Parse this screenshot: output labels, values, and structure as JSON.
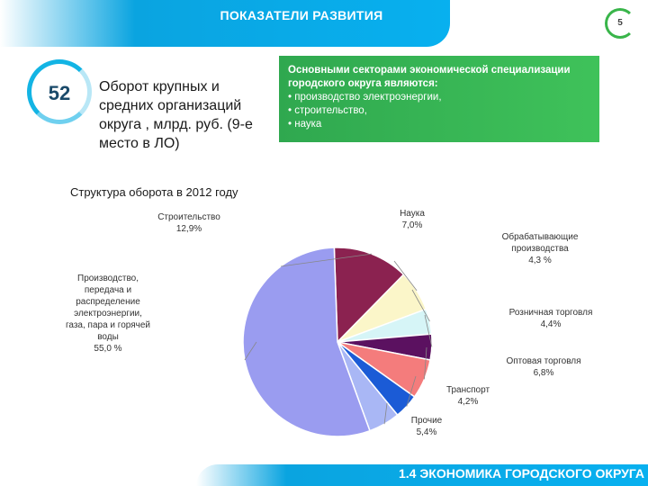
{
  "header": {
    "title": "ПОКАЗАТЕЛИ РАЗВИТИЯ",
    "page_number": "5"
  },
  "kpi": {
    "value": "52",
    "description": "Оборот крупных и средних организаций округа , млрд. руб. (9-е место в ЛО)"
  },
  "specialization": {
    "heading": "Основными секторами экономической специализации городского округа являются:",
    "items": [
      "• производство электроэнергии,",
      "• строительство,",
      "• наука"
    ]
  },
  "footer": {
    "title": "1.4 ЭКОНОМИКА ГОРОДСКОГО ОКРУГА"
  },
  "colors": {
    "header_blue": "#08b0ef",
    "green": "#39b54a"
  },
  "chart_data": {
    "type": "pie",
    "title": "Структура оборота в 2012 году",
    "slices": [
      {
        "label_lines": [
          "Строительство"
        ],
        "value_text": "12,9%",
        "value": 12.9,
        "color": "#8b2250"
      },
      {
        "label_lines": [
          "Наука"
        ],
        "value_text": "7,0%",
        "value": 7.0,
        "color": "#fbf6c9"
      },
      {
        "label_lines": [
          "Обрабатывающие",
          "производства"
        ],
        "value_text": "4,3 %",
        "value": 4.3,
        "color": "#d6f5f7"
      },
      {
        "label_lines": [
          "Розничная торговля"
        ],
        "value_text": "4,4%",
        "value": 4.4,
        "color": "#5b1160"
      },
      {
        "label_lines": [
          "Оптовая торговля"
        ],
        "value_text": "6,8%",
        "value": 6.8,
        "color": "#f47c7c"
      },
      {
        "label_lines": [
          "Транспорт"
        ],
        "value_text": "4,2%",
        "value": 4.2,
        "color": "#1b5bd6"
      },
      {
        "label_lines": [
          "Прочие"
        ],
        "value_text": "5,4%",
        "value": 5.4,
        "color": "#a9b7f5"
      },
      {
        "label_lines": [
          "Производство,",
          "передача и",
          "распределение",
          "электроэнергии,",
          "газа, пара и горячей",
          "воды"
        ],
        "value_text": "55,0 %",
        "value": 55.0,
        "color": "#9a9cf0"
      }
    ]
  }
}
